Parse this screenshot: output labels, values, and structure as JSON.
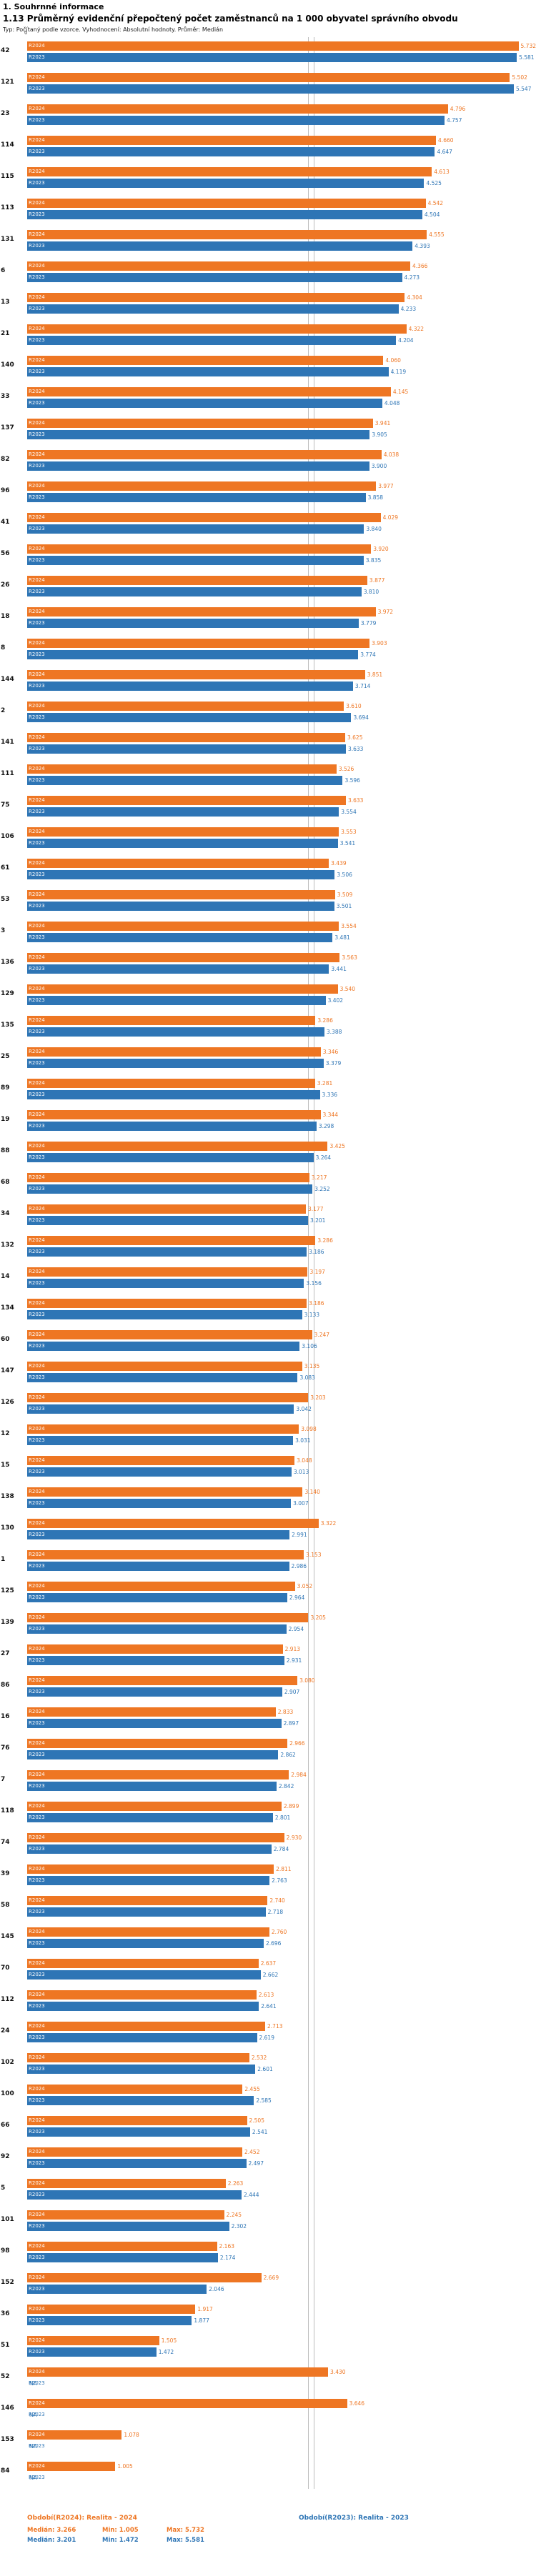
{
  "header": {
    "section": "1. Souhrnné informace",
    "title": "1.13 Průměrný evidenční přepočtený počet zaměstnanců na 1 000 obyvatel správního obvodu",
    "subtitle": "Typ: Počítaný podle vzorce. Vyhodnocení: Absolutní hodnoty. Průměr: Medián"
  },
  "axis": {
    "zero": "0"
  },
  "chart_data": {
    "type": "bar",
    "orientation": "horizontal",
    "title": "1.13 Průměrný evidenční přepočtený počet zaměstnanců na 1 000 obyvatel správního obvodu",
    "xlim": [
      0,
      5.8
    ],
    "grid": false,
    "legend_position": "bottom",
    "na_text": "NA",
    "series_meta": [
      {
        "key": "r2024",
        "name": "R2024",
        "color": "#ee7623",
        "legend": "Období(R2024): Realita - 2024",
        "median": 3.266,
        "min": 1.005,
        "max": 5.732
      },
      {
        "key": "r2023",
        "name": "R2023",
        "color": "#2e75b5",
        "legend": "Období(R2023): Realita - 2023",
        "median": 3.201,
        "min": 1.472,
        "max": 5.581
      }
    ],
    "rows": [
      {
        "id": "42",
        "r2024": 5.732,
        "r2023": 5.581
      },
      {
        "id": "121",
        "r2024": 5.502,
        "r2023": 5.547
      },
      {
        "id": "23",
        "r2024": 4.796,
        "r2023": 4.757
      },
      {
        "id": "114",
        "r2024": 4.66,
        "r2023": 4.647
      },
      {
        "id": "115",
        "r2024": 4.613,
        "r2023": 4.525
      },
      {
        "id": "113",
        "r2024": 4.542,
        "r2023": 4.504
      },
      {
        "id": "131",
        "r2024": 4.555,
        "r2023": 4.393
      },
      {
        "id": "6",
        "r2024": 4.366,
        "r2023": 4.273
      },
      {
        "id": "13",
        "r2024": 4.304,
        "r2023": 4.233
      },
      {
        "id": "21",
        "r2024": 4.322,
        "r2023": 4.204
      },
      {
        "id": "140",
        "r2024": 4.06,
        "r2023": 4.119
      },
      {
        "id": "33",
        "r2024": 4.145,
        "r2023": 4.048
      },
      {
        "id": "137",
        "r2024": 3.941,
        "r2023": 3.905
      },
      {
        "id": "82",
        "r2024": 4.038,
        "r2023": 3.9
      },
      {
        "id": "96",
        "r2024": 3.977,
        "r2023": 3.858
      },
      {
        "id": "41",
        "r2024": 4.029,
        "r2023": 3.84
      },
      {
        "id": "56",
        "r2024": 3.92,
        "r2023": 3.835
      },
      {
        "id": "26",
        "r2024": 3.877,
        "r2023": 3.81
      },
      {
        "id": "18",
        "r2024": 3.972,
        "r2023": 3.779
      },
      {
        "id": "8",
        "r2024": 3.903,
        "r2023": 3.774
      },
      {
        "id": "144",
        "r2024": 3.851,
        "r2023": 3.714
      },
      {
        "id": "2",
        "r2024": 3.61,
        "r2023": 3.694
      },
      {
        "id": "141",
        "r2024": 3.625,
        "r2023": 3.633
      },
      {
        "id": "111",
        "r2024": 3.526,
        "r2023": 3.596
      },
      {
        "id": "75",
        "r2024": 3.633,
        "r2023": 3.554
      },
      {
        "id": "106",
        "r2024": 3.553,
        "r2023": 3.541
      },
      {
        "id": "61",
        "r2024": 3.439,
        "r2023": 3.506
      },
      {
        "id": "53",
        "r2024": 3.509,
        "r2023": 3.501
      },
      {
        "id": "3",
        "r2024": 3.554,
        "r2023": 3.481
      },
      {
        "id": "136",
        "r2024": 3.563,
        "r2023": 3.441
      },
      {
        "id": "129",
        "r2024": 3.54,
        "r2023": 3.402
      },
      {
        "id": "135",
        "r2024": 3.286,
        "r2023": 3.388
      },
      {
        "id": "25",
        "r2024": 3.346,
        "r2023": 3.379
      },
      {
        "id": "89",
        "r2024": 3.281,
        "r2023": 3.336
      },
      {
        "id": "19",
        "r2024": 3.344,
        "r2023": 3.298
      },
      {
        "id": "88",
        "r2024": 3.425,
        "r2023": 3.264
      },
      {
        "id": "68",
        "r2024": 3.217,
        "r2023": 3.252
      },
      {
        "id": "34",
        "r2024": 3.177,
        "r2023": 3.201
      },
      {
        "id": "132",
        "r2024": 3.286,
        "r2023": 3.186
      },
      {
        "id": "14",
        "r2024": 3.197,
        "r2023": 3.156
      },
      {
        "id": "134",
        "r2024": 3.186,
        "r2023": 3.133
      },
      {
        "id": "60",
        "r2024": 3.247,
        "r2023": 3.106
      },
      {
        "id": "147",
        "r2024": 3.135,
        "r2023": 3.083
      },
      {
        "id": "126",
        "r2024": 3.203,
        "r2023": 3.042
      },
      {
        "id": "12",
        "r2024": 3.098,
        "r2023": 3.031
      },
      {
        "id": "15",
        "r2024": 3.048,
        "r2023": 3.013
      },
      {
        "id": "138",
        "r2024": 3.14,
        "r2023": 3.007
      },
      {
        "id": "130",
        "r2024": 3.322,
        "r2023": 2.991
      },
      {
        "id": "1",
        "r2024": 3.153,
        "r2023": 2.986
      },
      {
        "id": "125",
        "r2024": 3.052,
        "r2023": 2.964
      },
      {
        "id": "139",
        "r2024": 3.205,
        "r2023": 2.954
      },
      {
        "id": "27",
        "r2024": 2.913,
        "r2023": 2.931
      },
      {
        "id": "86",
        "r2024": 3.08,
        "r2023": 2.907
      },
      {
        "id": "16",
        "r2024": 2.833,
        "r2023": 2.897
      },
      {
        "id": "76",
        "r2024": 2.966,
        "r2023": 2.862
      },
      {
        "id": "7",
        "r2024": 2.984,
        "r2023": 2.842
      },
      {
        "id": "118",
        "r2024": 2.899,
        "r2023": 2.801
      },
      {
        "id": "74",
        "r2024": 2.93,
        "r2023": 2.784
      },
      {
        "id": "39",
        "r2024": 2.811,
        "r2023": 2.763
      },
      {
        "id": "58",
        "r2024": 2.74,
        "r2023": 2.718
      },
      {
        "id": "145",
        "r2024": 2.76,
        "r2023": 2.696
      },
      {
        "id": "70",
        "r2024": 2.637,
        "r2023": 2.662
      },
      {
        "id": "112",
        "r2024": 2.613,
        "r2023": 2.641
      },
      {
        "id": "24",
        "r2024": 2.713,
        "r2023": 2.619
      },
      {
        "id": "102",
        "r2024": 2.532,
        "r2023": 2.601
      },
      {
        "id": "100",
        "r2024": 2.455,
        "r2023": 2.585
      },
      {
        "id": "66",
        "r2024": 2.505,
        "r2023": 2.541
      },
      {
        "id": "92",
        "r2024": 2.452,
        "r2023": 2.497
      },
      {
        "id": "5",
        "r2024": 2.263,
        "r2023": 2.444
      },
      {
        "id": "101",
        "r2024": 2.245,
        "r2023": 2.302
      },
      {
        "id": "98",
        "r2024": 2.163,
        "r2023": 2.174
      },
      {
        "id": "152",
        "r2024": 2.669,
        "r2023": 2.046
      },
      {
        "id": "36",
        "r2024": 1.917,
        "r2023": 1.877
      },
      {
        "id": "51",
        "r2024": 1.505,
        "r2023": 1.472
      },
      {
        "id": "52",
        "r2024": 3.43,
        "r2023": null
      },
      {
        "id": "146",
        "r2024": 3.646,
        "r2023": null
      },
      {
        "id": "153",
        "r2024": 1.078,
        "r2023": null
      },
      {
        "id": "84",
        "r2024": 1.005,
        "r2023": null
      }
    ]
  },
  "footer": {
    "legend_r2024": "Období(R2024): Realita - 2024",
    "legend_r2023": "Období(R2023): Realita - 2023",
    "stats_r2024": {
      "median": "Medián: 3.266",
      "min": "Min: 1.005",
      "max": "Max: 5.732"
    },
    "stats_r2023": {
      "median": "Medián: 3.201",
      "min": "Min: 1.472",
      "max": "Max: 5.581"
    }
  }
}
